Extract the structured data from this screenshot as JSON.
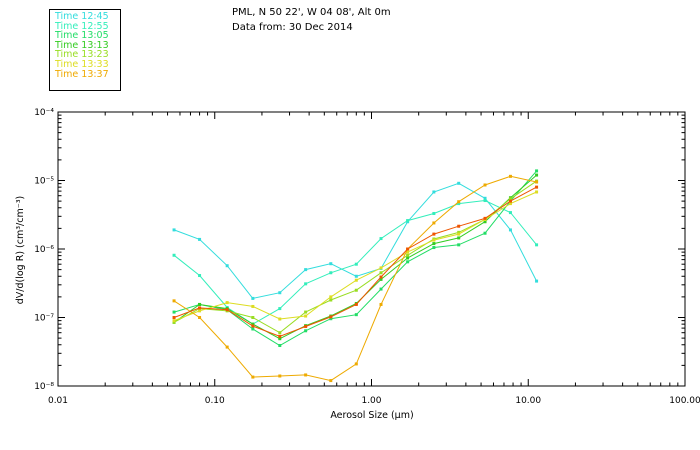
{
  "header": {
    "line1": "PML, N 50 22', W 04 08', Alt 0m",
    "line2": "Data from: 30 Dec 2014"
  },
  "chart_data": {
    "type": "line",
    "xscale": "log",
    "yscale": "log",
    "xlabel": "Aerosol Size (µm)",
    "ylabel": "dV/d(log R) (cm³/cm⁻³)",
    "xlim": [
      0.01,
      100
    ],
    "ylim": [
      1e-08,
      0.0001
    ],
    "x_ticks": [
      {
        "value": 0.01,
        "label": "0.01"
      },
      {
        "value": 0.1,
        "label": "0.10"
      },
      {
        "value": 1,
        "label": "1.00"
      },
      {
        "value": 10,
        "label": "10.00"
      },
      {
        "value": 100,
        "label": "100.00"
      }
    ],
    "y_ticks": [
      {
        "value": 1e-08,
        "label": "10⁻⁸"
      },
      {
        "value": 1e-07,
        "label": "10⁻⁷"
      },
      {
        "value": 1e-06,
        "label": "10⁻⁶"
      },
      {
        "value": 1e-05,
        "label": "10⁻⁵"
      },
      {
        "value": 0.0001,
        "label": "10⁻⁴"
      }
    ],
    "x": [
      0.055,
      0.08,
      0.12,
      0.175,
      0.26,
      0.38,
      0.55,
      0.8,
      1.15,
      1.7,
      2.5,
      3.6,
      5.3,
      7.7,
      11.3
    ],
    "series": [
      {
        "name": "Time 12:45",
        "color": "#33dddd",
        "values": [
          1.9e-06,
          1.38e-06,
          5.7e-07,
          1.9e-07,
          2.3e-07,
          5e-07,
          6.1e-07,
          4e-07,
          5.2e-07,
          2.5e-06,
          6.8e-06,
          9.1e-06,
          5.5e-06,
          1.9e-06,
          3.4e-07
        ]
      },
      {
        "name": "Time 12:55",
        "color": "#33eebb",
        "values": [
          8.1e-07,
          4.1e-07,
          1.4e-07,
          8e-08,
          1.35e-07,
          3.1e-07,
          4.5e-07,
          6e-07,
          1.42e-06,
          2.6e-06,
          3.3e-06,
          4.6e-06,
          5.1e-06,
          3.4e-06,
          1.15e-06
        ]
      },
      {
        "name": "Time 13:05",
        "color": "#22dd66",
        "values": [
          1.2e-07,
          1.55e-07,
          1.3e-07,
          6.8e-08,
          3.9e-08,
          6.4e-08,
          9.6e-08,
          1.1e-07,
          2.6e-07,
          6.5e-07,
          1.05e-06,
          1.15e-06,
          1.7e-06,
          5e-06,
          1.38e-05
        ]
      },
      {
        "name": "Time 13:13",
        "color": "#33cc22",
        "values": [
          8.5e-08,
          1.55e-07,
          1.35e-07,
          8e-08,
          4.9e-08,
          7.6e-08,
          1.05e-07,
          1.6e-07,
          3.6e-07,
          7.4e-07,
          1.2e-06,
          1.45e-06,
          2.5e-06,
          5.6e-06,
          1.2e-05
        ]
      },
      {
        "name": "Time 13:23",
        "color": "#99dd22",
        "values": [
          8.5e-08,
          1.35e-07,
          1.25e-07,
          1e-07,
          6e-08,
          1.2e-07,
          1.8e-07,
          2.5e-07,
          4.5e-07,
          8.1e-07,
          1.4e-06,
          1.75e-06,
          2.7e-06,
          5.4e-06,
          9.8e-06
        ]
      },
      {
        "name": "Time 13:33",
        "color": "#dddd22",
        "values": [
          9e-08,
          1.25e-07,
          1.65e-07,
          1.45e-07,
          9.5e-08,
          1.05e-07,
          2e-07,
          3.5e-07,
          5.3e-07,
          9e-07,
          1.35e-06,
          1.65e-06,
          2.7e-06,
          4.6e-06,
          6.8e-06
        ]
      },
      {
        "name": "Time 13:37",
        "color": "#eeaa00",
        "values": [
          1.75e-07,
          1e-07,
          3.7e-08,
          1.35e-08,
          1.4e-08,
          1.45e-08,
          1.2e-08,
          2.1e-08,
          1.55e-07,
          1e-06,
          2.4e-06,
          4.9e-06,
          8.6e-06,
          1.15e-05,
          9.5e-06
        ]
      },
      {
        "name": "",
        "color": "#ee5500",
        "values": [
          1e-07,
          1.38e-07,
          1.3e-07,
          7.5e-08,
          5.3e-08,
          7.4e-08,
          1.02e-07,
          1.55e-07,
          3.9e-07,
          1e-06,
          1.65e-06,
          2.15e-06,
          2.8e-06,
          5e-06,
          8e-06
        ]
      }
    ]
  }
}
